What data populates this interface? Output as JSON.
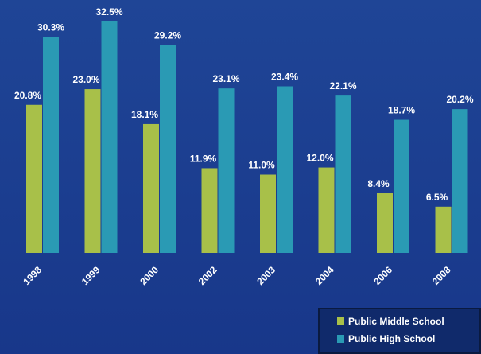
{
  "chart_data": {
    "type": "bar",
    "categories": [
      "1998",
      "1999",
      "2000",
      "2002",
      "2003",
      "2004",
      "2006",
      "2008"
    ],
    "series": [
      {
        "name": "Public Middle School",
        "color": "#a8c049",
        "values": [
          20.8,
          23.0,
          18.1,
          11.9,
          11.0,
          12.0,
          8.4,
          6.5
        ],
        "value_labels": [
          "20.8%",
          "23.0%",
          "18.1%",
          "11.9%",
          "11.0%",
          "12.0%",
          "8.4%",
          "6.5%"
        ]
      },
      {
        "name": "Public High School",
        "color": "#2a9ab4",
        "values": [
          30.3,
          32.5,
          29.2,
          23.1,
          23.4,
          22.1,
          18.7,
          20.2
        ],
        "value_labels": [
          "30.3%",
          "32.5%",
          "29.2%",
          "23.1%",
          "23.4%",
          "22.1%",
          "18.7%",
          "20.2%"
        ]
      }
    ],
    "legend": "bottom-right"
  }
}
